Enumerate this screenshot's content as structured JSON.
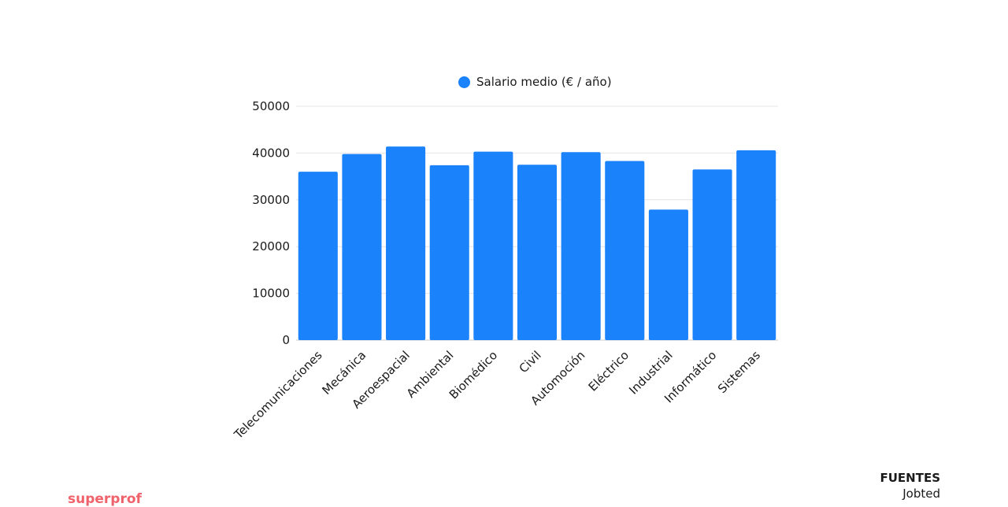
{
  "chart_data": {
    "type": "bar",
    "categories": [
      "Telecomunicaciones",
      "Mecánica",
      "Aeroespacial",
      "Ambiental",
      "Biomédico",
      "Civil",
      "Automoción",
      "Eléctrico",
      "Industrial",
      "Informático",
      "Sistemas"
    ],
    "series": [
      {
        "name": "Salario medio (€ / año)",
        "values": [
          36000,
          39800,
          41400,
          37400,
          40300,
          37500,
          40200,
          38300,
          27900,
          36500,
          40600
        ]
      }
    ],
    "ylim": [
      0,
      50000
    ],
    "yticks": [
      0,
      10000,
      20000,
      30000,
      40000,
      50000
    ],
    "grid": true,
    "legend": "top-center",
    "bar_color": "#1a82fb"
  },
  "sources": {
    "title": "FUENTES",
    "value": "Jobted"
  },
  "brand": {
    "text": "superprof",
    "color": "#f0626b"
  }
}
